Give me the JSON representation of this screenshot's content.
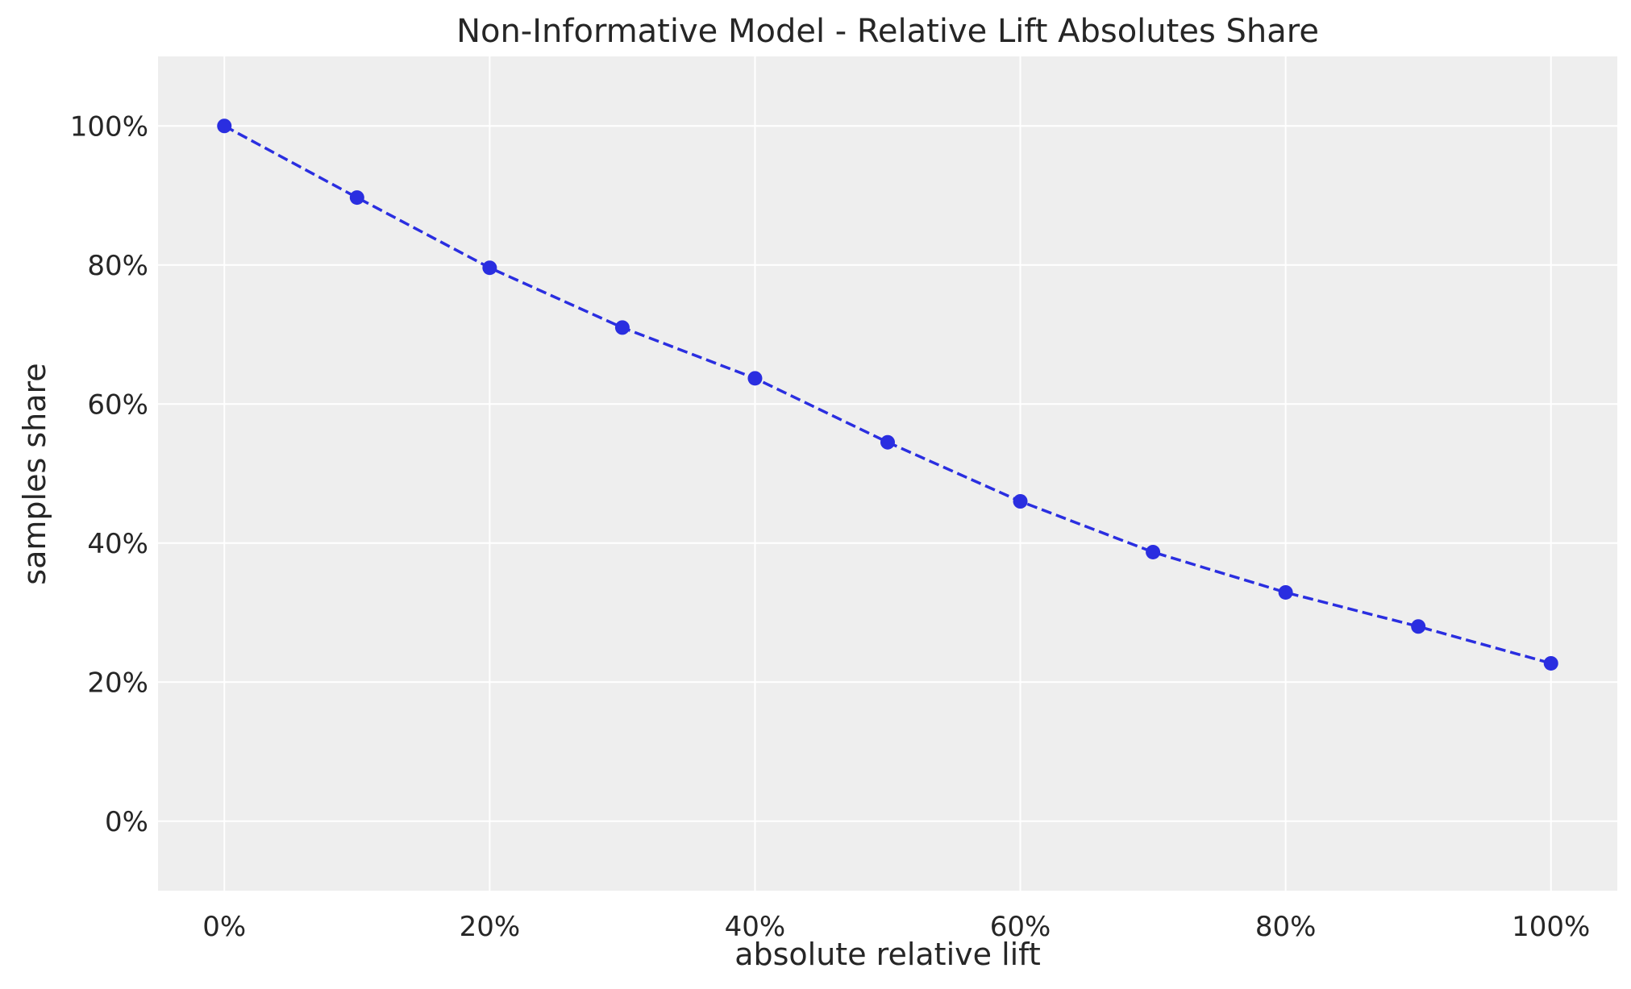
{
  "chart_data": {
    "type": "line",
    "title": "Non-Informative Model - Relative Lift Absolutes Share",
    "xlabel": "absolute relative lift",
    "ylabel": "samples share",
    "x": [
      0.0,
      0.1,
      0.2,
      0.3,
      0.4,
      0.5,
      0.6,
      0.7,
      0.8,
      0.9,
      1.0
    ],
    "series": [
      {
        "values": [
          1.0,
          0.897,
          0.796,
          0.71,
          0.637,
          0.545,
          0.46,
          0.387,
          0.329,
          0.28,
          0.227
        ],
        "color": "#2a2ee0",
        "line_style": "dashed",
        "marker": "circle"
      }
    ],
    "xlim": [
      -0.05,
      1.05
    ],
    "ylim": [
      -0.1,
      1.1
    ],
    "xticks": [
      0.0,
      0.2,
      0.4,
      0.6,
      0.8,
      1.0
    ],
    "xtick_labels": [
      "0%",
      "20%",
      "40%",
      "60%",
      "80%",
      "100%"
    ],
    "yticks": [
      0.0,
      0.2,
      0.4,
      0.6,
      0.8,
      1.0
    ],
    "ytick_labels": [
      "0%",
      "20%",
      "40%",
      "60%",
      "80%",
      "100%"
    ],
    "grid": true,
    "background": "#eeeeee",
    "grid_color": "#ffffff"
  }
}
